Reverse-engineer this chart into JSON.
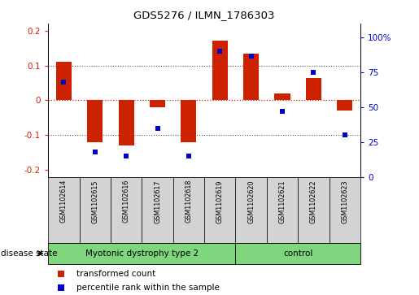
{
  "title": "GDS5276 / ILMN_1786303",
  "samples": [
    "GSM1102614",
    "GSM1102615",
    "GSM1102616",
    "GSM1102617",
    "GSM1102618",
    "GSM1102619",
    "GSM1102620",
    "GSM1102621",
    "GSM1102622",
    "GSM1102623"
  ],
  "transformed_count": [
    0.11,
    -0.12,
    -0.13,
    -0.02,
    -0.12,
    0.17,
    0.135,
    0.02,
    0.063,
    -0.03
  ],
  "percentile_rank": [
    68,
    18,
    15,
    35,
    15,
    90,
    87,
    47,
    75,
    30
  ],
  "groups": [
    {
      "label": "Myotonic dystrophy type 2",
      "start": 0,
      "end": 5,
      "color": "#7FD67F"
    },
    {
      "label": "control",
      "start": 6,
      "end": 9,
      "color": "#7FD67F"
    }
  ],
  "ylim_left": [
    -0.22,
    0.22
  ],
  "ylim_right": [
    0,
    110
  ],
  "yticks_left": [
    -0.2,
    -0.1,
    0.0,
    0.1,
    0.2
  ],
  "ytick_labels_left": [
    "-0.2",
    "-0.1",
    "0",
    "0.1",
    "0.2"
  ],
  "yticks_right": [
    0,
    25,
    50,
    75,
    100
  ],
  "ytick_labels_right": [
    "0",
    "25",
    "50",
    "75",
    "100%"
  ],
  "bar_color": "#cc2200",
  "dot_color": "#0000cc",
  "grid_color": "#555555",
  "hline_color": "#cc2200",
  "label_box_color": "#d3d3d3",
  "disease_state_label": "disease state",
  "legend_items": [
    {
      "color": "#cc2200",
      "marker": "s",
      "label": "transformed count"
    },
    {
      "color": "#0000cc",
      "marker": "s",
      "label": "percentile rank within the sample"
    }
  ]
}
